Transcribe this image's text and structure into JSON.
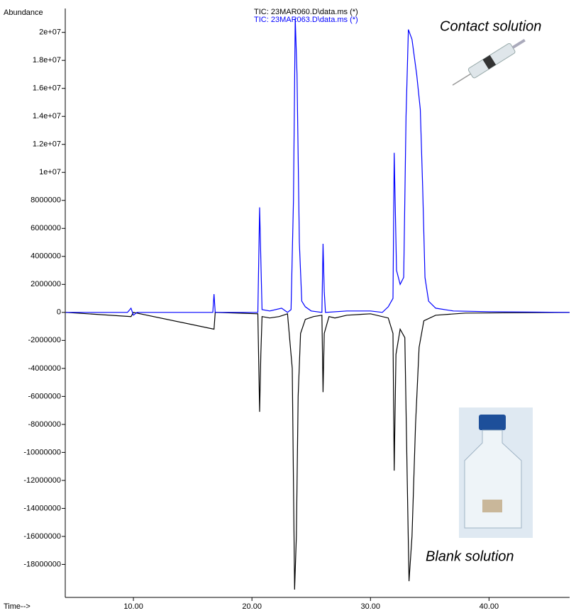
{
  "chart_data": {
    "type": "line",
    "y_label": "Abundance",
    "x_label": "Time-->",
    "annotations": [
      "Contact solution",
      "Blank solution"
    ],
    "xlim": [
      4.25,
      46.8
    ],
    "ylim": [
      -19800000,
      21300000
    ],
    "xticks": [
      {
        "value": 10,
        "label": "10.00"
      },
      {
        "value": 20,
        "label": "20.00"
      },
      {
        "value": 30,
        "label": "30.00"
      },
      {
        "value": 40,
        "label": "40.00"
      }
    ],
    "yticks": [
      {
        "value": 20000000,
        "label": "2e+07"
      },
      {
        "value": 18000000,
        "label": "1.8e+07"
      },
      {
        "value": 16000000,
        "label": "1.6e+07"
      },
      {
        "value": 14000000,
        "label": "1.4e+07"
      },
      {
        "value": 12000000,
        "label": "1.2e+07"
      },
      {
        "value": 10000000,
        "label": "1e+07"
      },
      8000000,
      6000000,
      4000000,
      2000000,
      0,
      -2000000,
      -4000000,
      -6000000,
      -8000000,
      -10000000,
      -12000000,
      -14000000,
      -16000000,
      -18000000
    ],
    "series": [
      {
        "name": "TIC: 23MAR060.D\\data.ms (*)",
        "color": "#000000",
        "x": [
          4.3,
          9.8,
          10.0,
          16.8,
          16.9,
          20.5,
          20.65,
          20.75,
          20.85,
          21.5,
          22.3,
          23.0,
          23.4,
          23.6,
          23.75,
          23.9,
          24.1,
          24.5,
          25.2,
          25.9,
          26.0,
          26.1,
          26.5,
          27.0,
          28.0,
          30.0,
          31.5,
          31.9,
          32.0,
          32.15,
          32.5,
          32.9,
          33.1,
          33.25,
          33.5,
          33.8,
          34.1,
          34.5,
          35.5,
          38.0,
          46.8
        ],
        "values": [
          0,
          -300000,
          0,
          -1200000,
          0,
          -100000,
          -7100000,
          -3000000,
          -300000,
          -400000,
          -300000,
          -100000,
          -4000000,
          -19800000,
          -16000000,
          -6000000,
          -1500000,
          -500000,
          -300000,
          -200000,
          -5700000,
          -1500000,
          -300000,
          -400000,
          -200000,
          -100000,
          -400000,
          -1500000,
          -11300000,
          -3000000,
          -1200000,
          -1800000,
          -12000000,
          -19200000,
          -16000000,
          -8000000,
          -2500000,
          -600000,
          -200000,
          -50000,
          0
        ]
      },
      {
        "name": "TIC: 23MAR063.D\\data.ms (*)",
        "color": "#0000ff",
        "x": [
          4.3,
          9.5,
          9.8,
          10.0,
          10.3,
          16.7,
          16.8,
          16.9,
          20.5,
          20.65,
          20.75,
          20.85,
          21.5,
          22.5,
          23.0,
          23.3,
          23.5,
          23.65,
          23.8,
          24.0,
          24.2,
          24.5,
          25.0,
          25.9,
          26.0,
          26.1,
          26.2,
          28.0,
          30.0,
          31.0,
          31.5,
          31.9,
          32.0,
          32.2,
          32.5,
          32.8,
          33.0,
          33.2,
          33.5,
          33.9,
          34.2,
          34.4,
          34.6,
          34.9,
          35.5,
          37.0,
          40.0,
          46.8
        ],
        "values": [
          0,
          0,
          300000,
          -200000,
          0,
          0,
          1300000,
          0,
          0,
          7500000,
          3800000,
          200000,
          100000,
          300000,
          0,
          200000,
          8000000,
          21000000,
          17000000,
          5000000,
          800000,
          400000,
          100000,
          0,
          4900000,
          1500000,
          0,
          100000,
          100000,
          0,
          400000,
          1000000,
          11400000,
          3000000,
          2000000,
          2500000,
          14000000,
          20200000,
          19500000,
          17000000,
          14500000,
          9000000,
          2500000,
          800000,
          300000,
          100000,
          50000,
          0
        ]
      }
    ]
  }
}
